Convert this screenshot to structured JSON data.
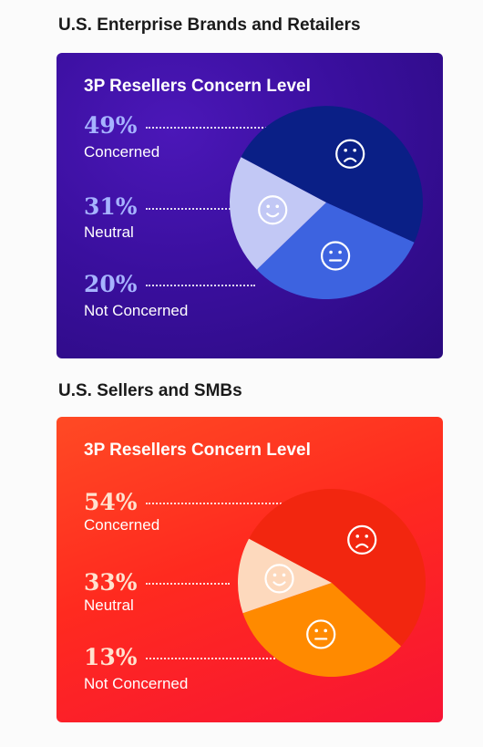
{
  "sections": [
    {
      "heading": "U.S. Enterprise Brands and Retailers",
      "card_title": "3P Resellers Concern Level"
    },
    {
      "heading": "U.S. Sellers and SMBs",
      "card_title": "3P Resellers Concern Level"
    }
  ],
  "chart_data": [
    {
      "type": "pie",
      "title": "3P Resellers Concern Level",
      "categories": [
        "Concerned",
        "Neutral",
        "Not Concerned"
      ],
      "values": [
        49,
        31,
        20
      ],
      "labels": [
        "49%",
        "31%",
        "20%"
      ],
      "colors": [
        "#0a1f86",
        "#3d63e0",
        "#c2c8f5"
      ],
      "icons": [
        "frown-face-icon",
        "neutral-face-icon",
        "smile-face-icon"
      ]
    },
    {
      "type": "pie",
      "title": "3P Resellers Concern Level",
      "categories": [
        "Concerned",
        "Neutral",
        "Not Concerned"
      ],
      "values": [
        54,
        33,
        13
      ],
      "labels": [
        "54%",
        "33%",
        "13%"
      ],
      "colors": [
        "#f2260f",
        "#ff8a00",
        "#fdd9bd"
      ],
      "icons": [
        "frown-face-icon",
        "neutral-face-icon",
        "smile-face-icon"
      ]
    }
  ]
}
